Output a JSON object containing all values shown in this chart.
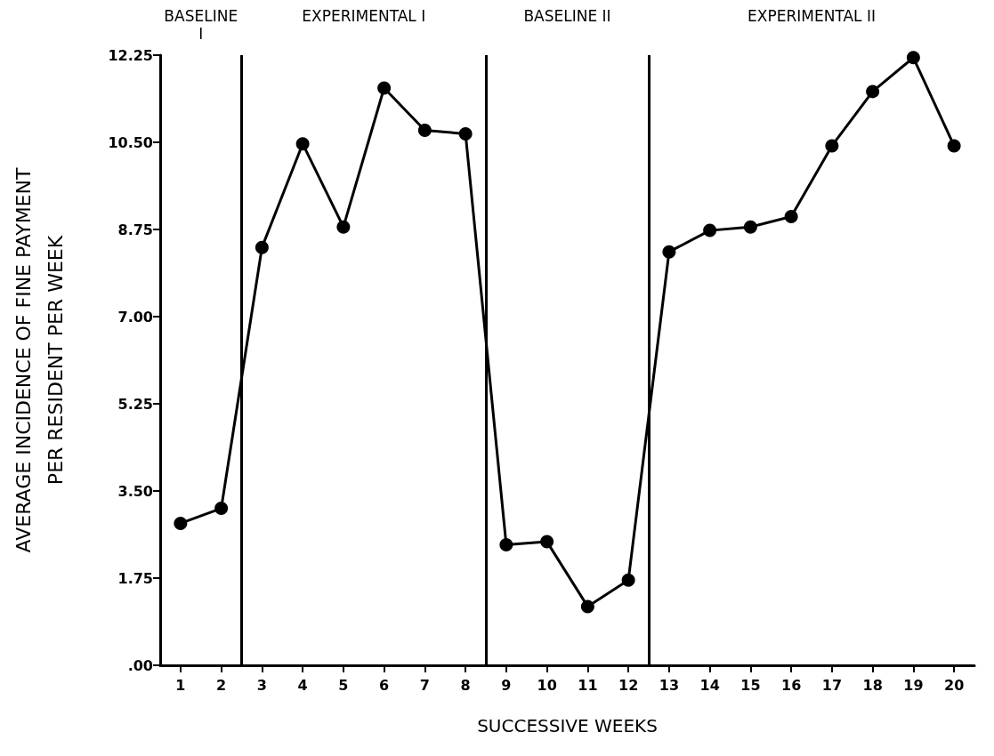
{
  "chart_data": {
    "type": "line",
    "xlabel": "SUCCESSIVE WEEKS",
    "ylabel": "AVERAGE INCIDENCE OF FINE PAYMENT\nPER RESIDENT PER WEEK",
    "x": [
      1,
      2,
      3,
      4,
      5,
      6,
      7,
      8,
      9,
      10,
      11,
      12,
      13,
      14,
      15,
      16,
      17,
      18,
      19,
      20
    ],
    "series": [
      {
        "color": "#000000",
        "values": [
          2.85,
          3.15,
          8.39,
          10.47,
          8.8,
          11.59,
          10.74,
          10.67,
          2.42,
          2.48,
          1.18,
          1.71,
          8.3,
          8.73,
          8.8,
          9.01,
          10.43,
          11.52,
          12.2,
          10.43
        ]
      }
    ],
    "xlim": [
      0.5,
      20.5
    ],
    "xticks": [
      1,
      2,
      3,
      4,
      5,
      6,
      7,
      8,
      9,
      10,
      11,
      12,
      13,
      14,
      15,
      16,
      17,
      18,
      19,
      20
    ],
    "ylim": [
      0,
      12.25
    ],
    "yticks": [
      {
        "value": 0,
        "label": ".00"
      },
      {
        "value": 1.75,
        "label": "1.75"
      },
      {
        "value": 3.5,
        "label": "3.50"
      },
      {
        "value": 5.25,
        "label": "5.25"
      },
      {
        "value": 7,
        "label": "7.00"
      },
      {
        "value": 8.75,
        "label": "8.75"
      },
      {
        "value": 10.5,
        "label": "10.50"
      },
      {
        "value": 12.25,
        "label": "12.25"
      }
    ],
    "ref_lines": [
      {
        "axis": "x",
        "value": 2.5,
        "color": "#000000",
        "line_style": "solid"
      },
      {
        "axis": "x",
        "value": 8.5,
        "color": "#000000",
        "line_style": "solid"
      },
      {
        "axis": "x",
        "value": 12.5,
        "color": "#000000",
        "line_style": "solid"
      }
    ],
    "annotations": [
      "BASELINE\nI",
      "EXPERIMENTAL I",
      "BASELINE II",
      "EXPERIMENTAL II"
    ],
    "marker": "circle",
    "line_style": "solid"
  }
}
